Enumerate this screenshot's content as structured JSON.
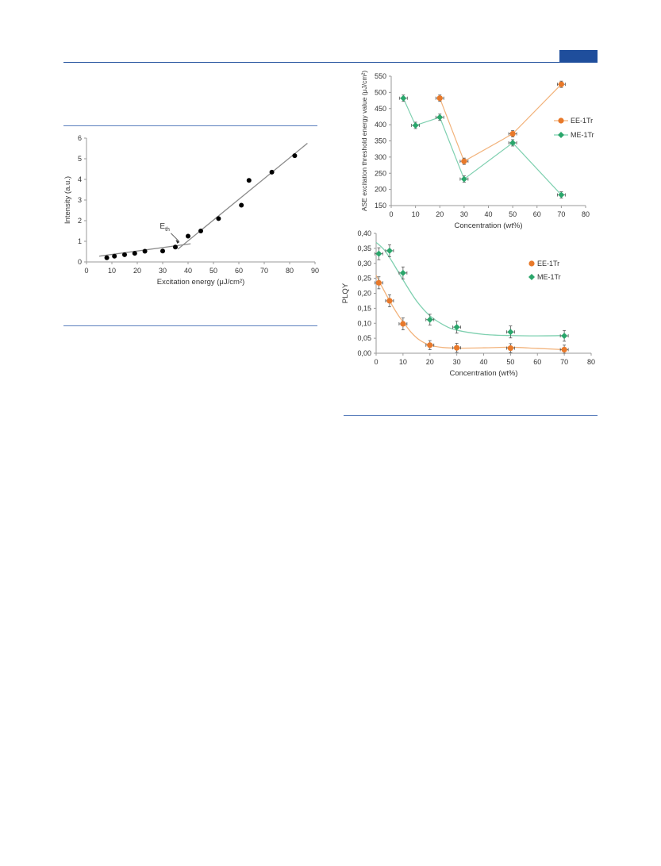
{
  "colors": {
    "brand_blue": "#1f4e9c",
    "rule_blue": "#5b7fbd",
    "ee_orange": "#e8792a",
    "me_green": "#2aa66b",
    "ee_fit": "#f2b27a",
    "me_fit": "#7fd0b0",
    "threshold_dots": "#000000",
    "threshold_line": "#8a8a8a"
  },
  "chart_data": [
    {
      "id": "threshold",
      "type": "scatter",
      "xlabel": "Excitation energy (μJ/cm²)",
      "ylabel": "Intensity (a.u.)",
      "xlim": [
        0,
        90
      ],
      "ylim": [
        0,
        6
      ],
      "xticks": [
        "0",
        "10",
        "20",
        "30",
        "40",
        "50",
        "60",
        "70",
        "80",
        "90"
      ],
      "yticks": [
        "0",
        "1",
        "2",
        "3",
        "4",
        "5",
        "6"
      ],
      "annotation": {
        "label": "E",
        "subscript": "th",
        "x": 37,
        "y": 0.85
      },
      "points": [
        [
          8,
          0.2
        ],
        [
          11,
          0.28
        ],
        [
          15,
          0.35
        ],
        [
          19,
          0.42
        ],
        [
          23,
          0.52
        ],
        [
          30,
          0.53
        ],
        [
          35,
          0.72
        ],
        [
          40,
          1.25
        ],
        [
          45,
          1.5
        ],
        [
          52,
          2.1
        ],
        [
          61,
          2.75
        ],
        [
          64,
          3.95
        ],
        [
          73,
          4.35
        ],
        [
          82,
          5.15
        ]
      ],
      "fit_lines": [
        {
          "x": [
            5,
            41
          ],
          "y": [
            0.28,
            0.88
          ]
        },
        {
          "x": [
            36,
            87
          ],
          "y": [
            0.62,
            5.75
          ]
        }
      ]
    },
    {
      "id": "ase",
      "type": "line",
      "xlabel": "Concentration (wt%)",
      "ylabel": "ASE excitation threshold energy value (μJ/cm²)",
      "xlim": [
        0,
        80
      ],
      "ylim": [
        150,
        550
      ],
      "xticks": [
        "0",
        "10",
        "20",
        "30",
        "40",
        "50",
        "60",
        "70",
        "80"
      ],
      "yticks": [
        "150",
        "200",
        "250",
        "300",
        "350",
        "400",
        "450",
        "500",
        "550"
      ],
      "legend": "right",
      "series": [
        {
          "name": "EE-1Tr",
          "x": [
            20,
            30,
            50,
            70
          ],
          "y": [
            482,
            287,
            372,
            525
          ]
        },
        {
          "name": "ME-1Tr",
          "x": [
            5,
            10,
            20,
            30,
            50,
            70
          ],
          "y": [
            482,
            398,
            423,
            232,
            344,
            183
          ]
        }
      ]
    },
    {
      "id": "plqy",
      "type": "scatter",
      "xlabel": "Concentration (wt%)",
      "ylabel": "PLQY",
      "xlim": [
        0,
        80
      ],
      "ylim": [
        0,
        0.4
      ],
      "xticks": [
        "0",
        "10",
        "20",
        "30",
        "40",
        "50",
        "60",
        "70",
        "80"
      ],
      "yticks": [
        "0,00",
        "0,05",
        "0,10",
        "0,15",
        "0,20",
        "0,25",
        "0,30",
        "0,35",
        "0,40"
      ],
      "legend": "right",
      "series": [
        {
          "name": "EE-1Tr",
          "x": [
            1,
            5,
            10,
            20,
            30,
            50,
            70
          ],
          "y": [
            0.235,
            0.175,
            0.098,
            0.027,
            0.018,
            0.017,
            0.012
          ],
          "err": [
            0.02,
            0.02,
            0.02,
            0.015,
            0.015,
            0.015,
            0.015
          ]
        },
        {
          "name": "ME-1Tr",
          "x": [
            1,
            5,
            10,
            20,
            30,
            50,
            70
          ],
          "y": [
            0.332,
            0.342,
            0.268,
            0.112,
            0.087,
            0.071,
            0.058
          ],
          "err": [
            0.02,
            0.02,
            0.02,
            0.018,
            0.02,
            0.02,
            0.018
          ]
        }
      ],
      "fits": [
        {
          "series": "EE-1Tr",
          "x": [
            0,
            2,
            5,
            8,
            10,
            13,
            16,
            20,
            25,
            30,
            40,
            50,
            60,
            70
          ],
          "y": [
            0.26,
            0.225,
            0.175,
            0.13,
            0.105,
            0.07,
            0.045,
            0.027,
            0.019,
            0.017,
            0.018,
            0.02,
            0.016,
            0.012
          ]
        },
        {
          "series": "ME-1Tr",
          "x": [
            0,
            3,
            6,
            10,
            15,
            20,
            25,
            30,
            40,
            50,
            60,
            70
          ],
          "y": [
            0.37,
            0.345,
            0.305,
            0.245,
            0.175,
            0.125,
            0.095,
            0.077,
            0.063,
            0.059,
            0.058,
            0.059
          ]
        }
      ]
    }
  ]
}
